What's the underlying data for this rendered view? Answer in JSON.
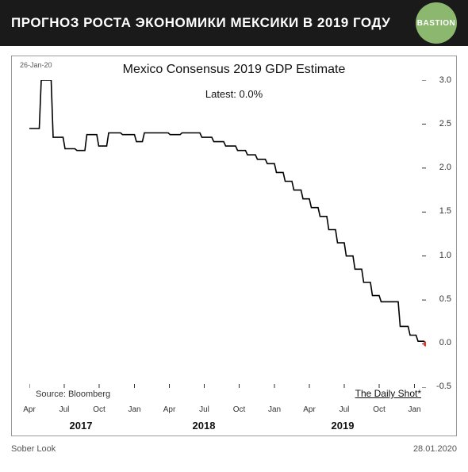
{
  "header": {
    "title": "ПРОГНОЗ РОСТА ЭКОНОМИКИ МЕКСИКИ В 2019 ГОДУ",
    "badge": "BASTION",
    "badge_bg": "#8bb86e"
  },
  "chart": {
    "type": "step-line",
    "date_note": "26-Jan-20",
    "title": "Mexico Consensus 2019 GDP Estimate",
    "latest_label": "Latest:  0.0%",
    "source_left": "Source: Bloomberg",
    "source_right": "The Daily Shot*",
    "background_color": "#ffffff",
    "border_color": "#999999",
    "line_color": "#000000",
    "line_width": 1.6,
    "dot_color": "#e8352e",
    "dot_radius": 3.2,
    "title_fontsize": 16,
    "ylim": [
      -0.5,
      3.0
    ],
    "ytick_step": 0.5,
    "yticks": [
      "-0.5",
      "0.0",
      "0.5",
      "1.0",
      "1.5",
      "2.0",
      "2.5",
      "3.0"
    ],
    "x_start": "2017-04",
    "x_end": "2020-02",
    "x_month_ticks": [
      {
        "t": 0.0,
        "label": "Apr"
      },
      {
        "t": 0.088,
        "label": "Jul"
      },
      {
        "t": 0.176,
        "label": "Oct"
      },
      {
        "t": 0.265,
        "label": "Jan"
      },
      {
        "t": 0.353,
        "label": "Apr"
      },
      {
        "t": 0.441,
        "label": "Jul"
      },
      {
        "t": 0.529,
        "label": "Oct"
      },
      {
        "t": 0.618,
        "label": "Jan"
      },
      {
        "t": 0.706,
        "label": "Apr"
      },
      {
        "t": 0.794,
        "label": "Jul"
      },
      {
        "t": 0.882,
        "label": "Oct"
      },
      {
        "t": 0.971,
        "label": "Jan"
      }
    ],
    "x_year_labels": [
      {
        "t": 0.13,
        "label": "2017"
      },
      {
        "t": 0.44,
        "label": "2018"
      },
      {
        "t": 0.79,
        "label": "2019"
      }
    ],
    "series": [
      {
        "t": 0.0,
        "y": 2.45
      },
      {
        "t": 0.025,
        "y": 2.45
      },
      {
        "t": 0.03,
        "y": 3.0
      },
      {
        "t": 0.055,
        "y": 3.0
      },
      {
        "t": 0.06,
        "y": 2.35
      },
      {
        "t": 0.085,
        "y": 2.35
      },
      {
        "t": 0.09,
        "y": 2.22
      },
      {
        "t": 0.115,
        "y": 2.22
      },
      {
        "t": 0.12,
        "y": 2.2
      },
      {
        "t": 0.14,
        "y": 2.2
      },
      {
        "t": 0.145,
        "y": 2.38
      },
      {
        "t": 0.17,
        "y": 2.38
      },
      {
        "t": 0.175,
        "y": 2.25
      },
      {
        "t": 0.195,
        "y": 2.25
      },
      {
        "t": 0.2,
        "y": 2.4
      },
      {
        "t": 0.23,
        "y": 2.4
      },
      {
        "t": 0.235,
        "y": 2.38
      },
      {
        "t": 0.265,
        "y": 2.38
      },
      {
        "t": 0.27,
        "y": 2.3
      },
      {
        "t": 0.285,
        "y": 2.3
      },
      {
        "t": 0.29,
        "y": 2.4
      },
      {
        "t": 0.35,
        "y": 2.4
      },
      {
        "t": 0.355,
        "y": 2.38
      },
      {
        "t": 0.38,
        "y": 2.38
      },
      {
        "t": 0.385,
        "y": 2.4
      },
      {
        "t": 0.43,
        "y": 2.4
      },
      {
        "t": 0.435,
        "y": 2.35
      },
      {
        "t": 0.46,
        "y": 2.35
      },
      {
        "t": 0.465,
        "y": 2.3
      },
      {
        "t": 0.49,
        "y": 2.3
      },
      {
        "t": 0.495,
        "y": 2.25
      },
      {
        "t": 0.52,
        "y": 2.25
      },
      {
        "t": 0.525,
        "y": 2.2
      },
      {
        "t": 0.545,
        "y": 2.2
      },
      {
        "t": 0.55,
        "y": 2.15
      },
      {
        "t": 0.57,
        "y": 2.15
      },
      {
        "t": 0.575,
        "y": 2.1
      },
      {
        "t": 0.595,
        "y": 2.1
      },
      {
        "t": 0.6,
        "y": 2.05
      },
      {
        "t": 0.618,
        "y": 2.05
      },
      {
        "t": 0.623,
        "y": 1.95
      },
      {
        "t": 0.64,
        "y": 1.95
      },
      {
        "t": 0.645,
        "y": 1.85
      },
      {
        "t": 0.662,
        "y": 1.85
      },
      {
        "t": 0.667,
        "y": 1.75
      },
      {
        "t": 0.685,
        "y": 1.75
      },
      {
        "t": 0.69,
        "y": 1.65
      },
      {
        "t": 0.706,
        "y": 1.65
      },
      {
        "t": 0.711,
        "y": 1.55
      },
      {
        "t": 0.728,
        "y": 1.55
      },
      {
        "t": 0.733,
        "y": 1.45
      },
      {
        "t": 0.75,
        "y": 1.45
      },
      {
        "t": 0.755,
        "y": 1.3
      },
      {
        "t": 0.772,
        "y": 1.3
      },
      {
        "t": 0.777,
        "y": 1.15
      },
      {
        "t": 0.794,
        "y": 1.15
      },
      {
        "t": 0.799,
        "y": 1.0
      },
      {
        "t": 0.816,
        "y": 1.0
      },
      {
        "t": 0.821,
        "y": 0.85
      },
      {
        "t": 0.838,
        "y": 0.85
      },
      {
        "t": 0.843,
        "y": 0.7
      },
      {
        "t": 0.86,
        "y": 0.7
      },
      {
        "t": 0.865,
        "y": 0.55
      },
      {
        "t": 0.882,
        "y": 0.55
      },
      {
        "t": 0.887,
        "y": 0.48
      },
      {
        "t": 0.93,
        "y": 0.48
      },
      {
        "t": 0.935,
        "y": 0.2
      },
      {
        "t": 0.955,
        "y": 0.2
      },
      {
        "t": 0.96,
        "y": 0.1
      },
      {
        "t": 0.975,
        "y": 0.1
      },
      {
        "t": 0.98,
        "y": 0.03
      },
      {
        "t": 0.995,
        "y": 0.03
      },
      {
        "t": 1.0,
        "y": 0.0
      }
    ],
    "end_dot": {
      "t": 1.0,
      "y": 0.0
    }
  },
  "footer": {
    "left": "Sober Look",
    "right": "28.01.2020"
  }
}
